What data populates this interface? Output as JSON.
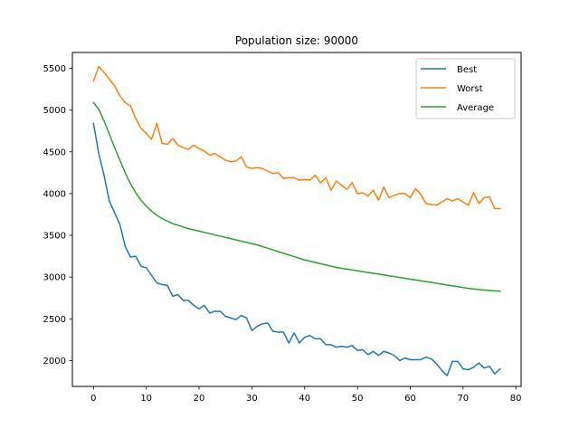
{
  "chart_data": {
    "type": "line",
    "title": "Population size: 90000",
    "xlabel": "",
    "ylabel": "",
    "xlim": [
      -4,
      81
    ],
    "ylim": [
      1690,
      5690
    ],
    "xticks": [
      0,
      10,
      20,
      30,
      40,
      50,
      60,
      70,
      80
    ],
    "yticks": [
      2000,
      2500,
      3000,
      3500,
      4000,
      4500,
      5000,
      5500
    ],
    "grid": false,
    "legend_position": "top-right",
    "x": [
      0,
      1,
      2,
      3,
      4,
      5,
      6,
      7,
      8,
      9,
      10,
      11,
      12,
      13,
      14,
      15,
      16,
      17,
      18,
      19,
      20,
      21,
      22,
      23,
      24,
      25,
      26,
      27,
      28,
      29,
      30,
      31,
      32,
      33,
      34,
      35,
      36,
      37,
      38,
      39,
      40,
      41,
      42,
      43,
      44,
      45,
      46,
      47,
      48,
      49,
      50,
      51,
      52,
      53,
      54,
      55,
      56,
      57,
      58,
      59,
      60,
      61,
      62,
      63,
      64,
      65,
      66,
      67,
      68,
      69,
      70,
      71,
      72,
      73,
      74,
      75,
      76,
      77
    ],
    "series": [
      {
        "name": "Best",
        "color": "#1f77b4",
        "values": [
          4840,
          4480,
          4220,
          3910,
          3770,
          3630,
          3370,
          3240,
          3250,
          3130,
          3110,
          3020,
          2930,
          2910,
          2900,
          2770,
          2790,
          2720,
          2720,
          2660,
          2620,
          2660,
          2570,
          2590,
          2590,
          2530,
          2510,
          2490,
          2540,
          2510,
          2360,
          2410,
          2440,
          2450,
          2350,
          2340,
          2340,
          2210,
          2330,
          2210,
          2280,
          2300,
          2260,
          2260,
          2190,
          2190,
          2160,
          2170,
          2160,
          2180,
          2120,
          2130,
          2070,
          2110,
          2060,
          2110,
          2090,
          2060,
          2000,
          2030,
          2010,
          2010,
          2010,
          2040,
          2020,
          1960,
          1880,
          1820,
          1990,
          1990,
          1900,
          1890,
          1920,
          1970,
          1910,
          1930,
          1840,
          1900
        ]
      },
      {
        "name": "Worst",
        "color": "#ff7f0e",
        "values": [
          5350,
          5520,
          5450,
          5370,
          5290,
          5170,
          5090,
          5050,
          4900,
          4780,
          4720,
          4650,
          4840,
          4600,
          4590,
          4660,
          4580,
          4550,
          4530,
          4580,
          4540,
          4510,
          4460,
          4480,
          4440,
          4400,
          4380,
          4390,
          4440,
          4320,
          4300,
          4310,
          4300,
          4270,
          4240,
          4250,
          4180,
          4190,
          4190,
          4160,
          4170,
          4160,
          4220,
          4130,
          4190,
          4040,
          4150,
          4100,
          4050,
          4130,
          4000,
          4010,
          3970,
          4040,
          3920,
          4080,
          3950,
          3980,
          4000,
          4000,
          3950,
          4060,
          3990,
          3880,
          3870,
          3860,
          3900,
          3940,
          3910,
          3940,
          3900,
          3860,
          4010,
          3880,
          3950,
          3960,
          3820,
          3820
        ]
      },
      {
        "name": "Average",
        "color": "#2ca02c",
        "values": [
          5090,
          5010,
          4870,
          4710,
          4550,
          4400,
          4250,
          4120,
          4010,
          3920,
          3850,
          3790,
          3740,
          3700,
          3670,
          3640,
          3620,
          3600,
          3580,
          3565,
          3550,
          3535,
          3520,
          3505,
          3490,
          3475,
          3460,
          3445,
          3430,
          3415,
          3400,
          3385,
          3365,
          3345,
          3325,
          3305,
          3285,
          3265,
          3245,
          3225,
          3205,
          3190,
          3175,
          3160,
          3145,
          3130,
          3115,
          3105,
          3095,
          3085,
          3075,
          3065,
          3055,
          3045,
          3035,
          3025,
          3015,
          3005,
          2995,
          2985,
          2975,
          2965,
          2955,
          2945,
          2935,
          2925,
          2915,
          2905,
          2895,
          2885,
          2875,
          2865,
          2857,
          2850,
          2845,
          2840,
          2835,
          2830
        ]
      }
    ]
  }
}
